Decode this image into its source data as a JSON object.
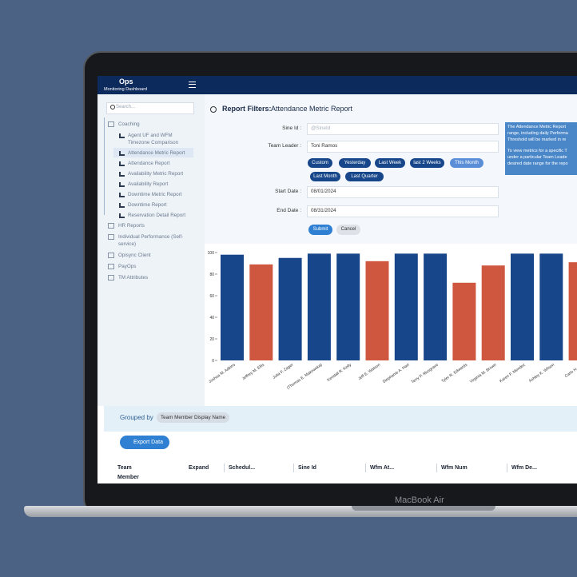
{
  "laptop_label": "MacBook Air",
  "header": {
    "title": "Ops",
    "subtitle": "Monitoring Dashboard"
  },
  "sidebar": {
    "search_placeholder": "Search...",
    "items": [
      {
        "label": "Coaching",
        "children": [
          "Agent UF and WFM Timezone Comparison",
          "Attendance Metric Report",
          "Attendance Report",
          "Availability Metric Report",
          "Availability Report",
          "Downtime Metric Report",
          "Downtime Report",
          "Reservation Detail Report"
        ]
      },
      {
        "label": "HR Reports"
      },
      {
        "label": "Individual Performance (Self-service)"
      },
      {
        "label": "Opisync Client"
      },
      {
        "label": "PayOps"
      },
      {
        "label": "TM Attributes"
      }
    ]
  },
  "filters": {
    "title": "Report Filters:",
    "report": "Attendance Metric Report",
    "sine_id_label": "Sine Id :",
    "sine_id_placeholder": "@SineId",
    "team_leader_label": "Team Leader :",
    "team_leader": "Toni Ramos",
    "ranges": [
      "Custom",
      "Yesterday",
      "Last Week",
      "last 2 Weeks",
      "This Month",
      "Last Month",
      "Last Quarter"
    ],
    "start_label": "Start Date :",
    "start": "08/01/2024",
    "end_label": "End Date :",
    "end": "08/31/2024",
    "submit": "Submit",
    "cancel": "Cancel"
  },
  "info": {
    "lines": [
      "The Attendance Metric Report",
      "range, including daily Performa",
      "Threshold will be marked in re",
      "To view metrics for a specific T",
      "under a particular Team Leade",
      "desired date range for the repo"
    ]
  },
  "chart_data": {
    "type": "bar",
    "categories": [
      "Joshua M. Adkins",
      "Jeffrey M. Ellis",
      "Julia F. Zager",
      "(Thomas E. Makowska)",
      "Kendall R. Kelly",
      "Jeff E. Watson",
      "Stephanie A. Hart",
      "Terry P. Musgrave",
      "Tyler R. Edwards",
      "Virginia M. Brown",
      "Karen F. Mendez",
      "Ashley K. Wilson",
      "Carlo H. Lar"
    ],
    "values": [
      98,
      89,
      95,
      99,
      99,
      92,
      99,
      99,
      72,
      88,
      99,
      99,
      91
    ],
    "colors": [
      "#17478a",
      "#d0573f",
      "#17478a",
      "#17478a",
      "#17478a",
      "#d0573f",
      "#17478a",
      "#17478a",
      "#d0573f",
      "#d0573f",
      "#17478a",
      "#17478a",
      "#d0573f"
    ],
    "ylim": [
      0,
      100
    ],
    "yticks": [
      0,
      20,
      40,
      60,
      80,
      100
    ]
  },
  "grouping": {
    "label": "Grouped by",
    "field": "Team Member Display Name"
  },
  "export": "Export Data",
  "table": {
    "columns": [
      "Team Member",
      "Expand",
      "Schedul...",
      "Sine Id",
      "Wfm At...",
      "Wfm Num",
      "Wfm De..."
    ]
  }
}
